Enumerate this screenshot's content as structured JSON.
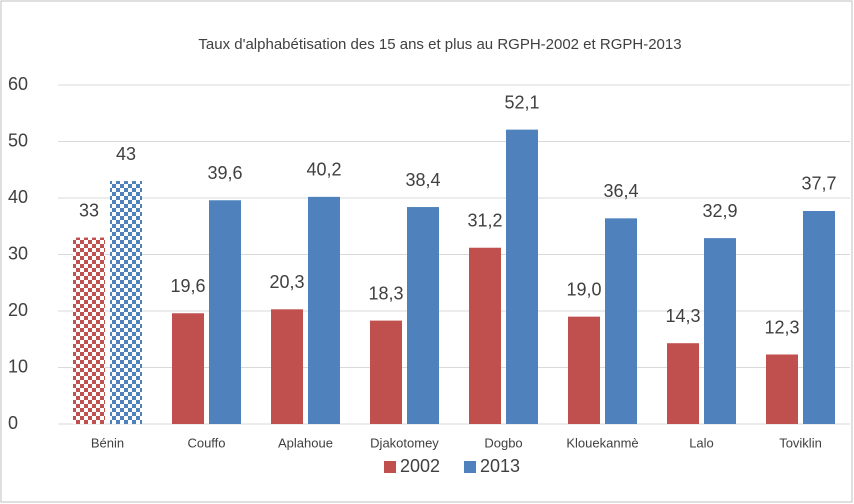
{
  "chart_data": {
    "type": "bar",
    "title": "Taux d'alphabétisation des 15 ans et plus au RGPH-2002 et RGPH-2013",
    "categories": [
      "Bénin",
      "Couffo",
      "Aplahoue",
      "Djakotomey",
      "Dogbo",
      "Klouekanmè",
      "Lalo",
      "Toviklin"
    ],
    "series": [
      {
        "name": "2002",
        "color": "#c0504d",
        "values": [
          33,
          19.6,
          20.3,
          18.3,
          31.2,
          19.0,
          14.3,
          12.3
        ],
        "value_labels": [
          "33",
          "19,6",
          "20,3",
          "18,3",
          "31,2",
          "19,0",
          "14,3",
          "12,3"
        ]
      },
      {
        "name": "2013",
        "color": "#4f81bd",
        "values": [
          43,
          39.6,
          40.2,
          38.4,
          52.1,
          36.4,
          32.9,
          37.7
        ],
        "value_labels": [
          "43",
          "39,6",
          "40,2",
          "38,4",
          "52,1",
          "36,4",
          "32,9",
          "37,7"
        ]
      }
    ],
    "ylim": [
      0,
      60
    ],
    "yticks": [
      0,
      10,
      20,
      30,
      40,
      50,
      60
    ],
    "grid": true,
    "legend": "bottom",
    "patterned_category": 0,
    "pattern": "checker"
  }
}
